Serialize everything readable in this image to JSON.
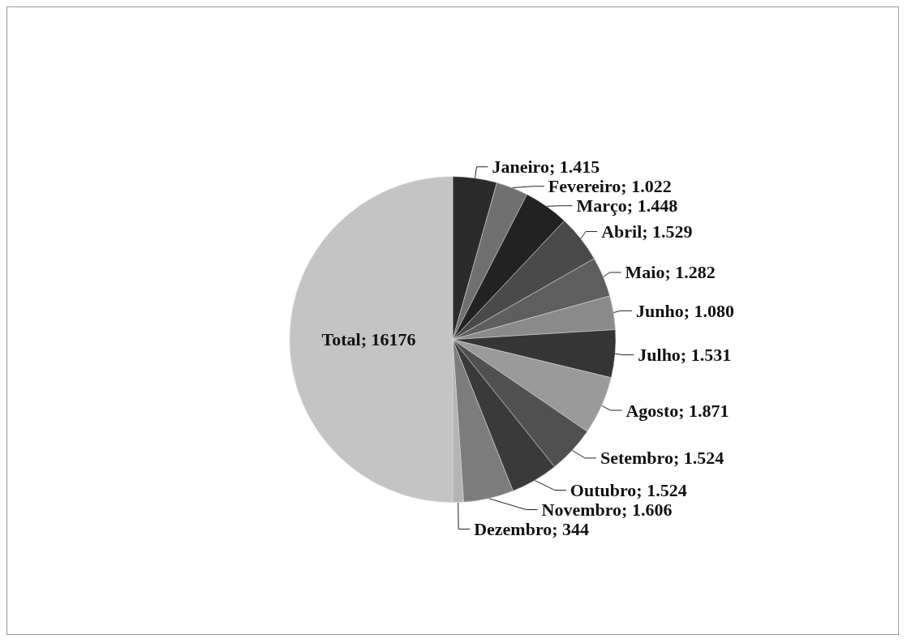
{
  "chart_data": {
    "type": "pie",
    "categories": [
      "Janeiro",
      "Fevereiro",
      "Março",
      "Abril",
      "Maio",
      "Junho",
      "Julho",
      "Agosto",
      "Setembro",
      "Outubro",
      "Novembro",
      "Dezembro",
      "Total"
    ],
    "values": [
      1415,
      1022,
      1448,
      1529,
      1282,
      1080,
      1531,
      1871,
      1524,
      1524,
      1606,
      344,
      16176
    ],
    "value_labels": [
      "1.415",
      "1.022",
      "1.448",
      "1.529",
      "1.282",
      "1.080",
      "1.531",
      "1.871",
      "1.524",
      "1.524",
      "1.606",
      "344",
      "16176"
    ],
    "colors": [
      "#2b2b2b",
      "#707070",
      "#222222",
      "#4a4a4a",
      "#5e5e5e",
      "#8a8a8a",
      "#353535",
      "#9a9a9a",
      "#505050",
      "#3a3a3a",
      "#7c7c7c",
      "#b4b4b4",
      "#c4c4c4"
    ]
  }
}
